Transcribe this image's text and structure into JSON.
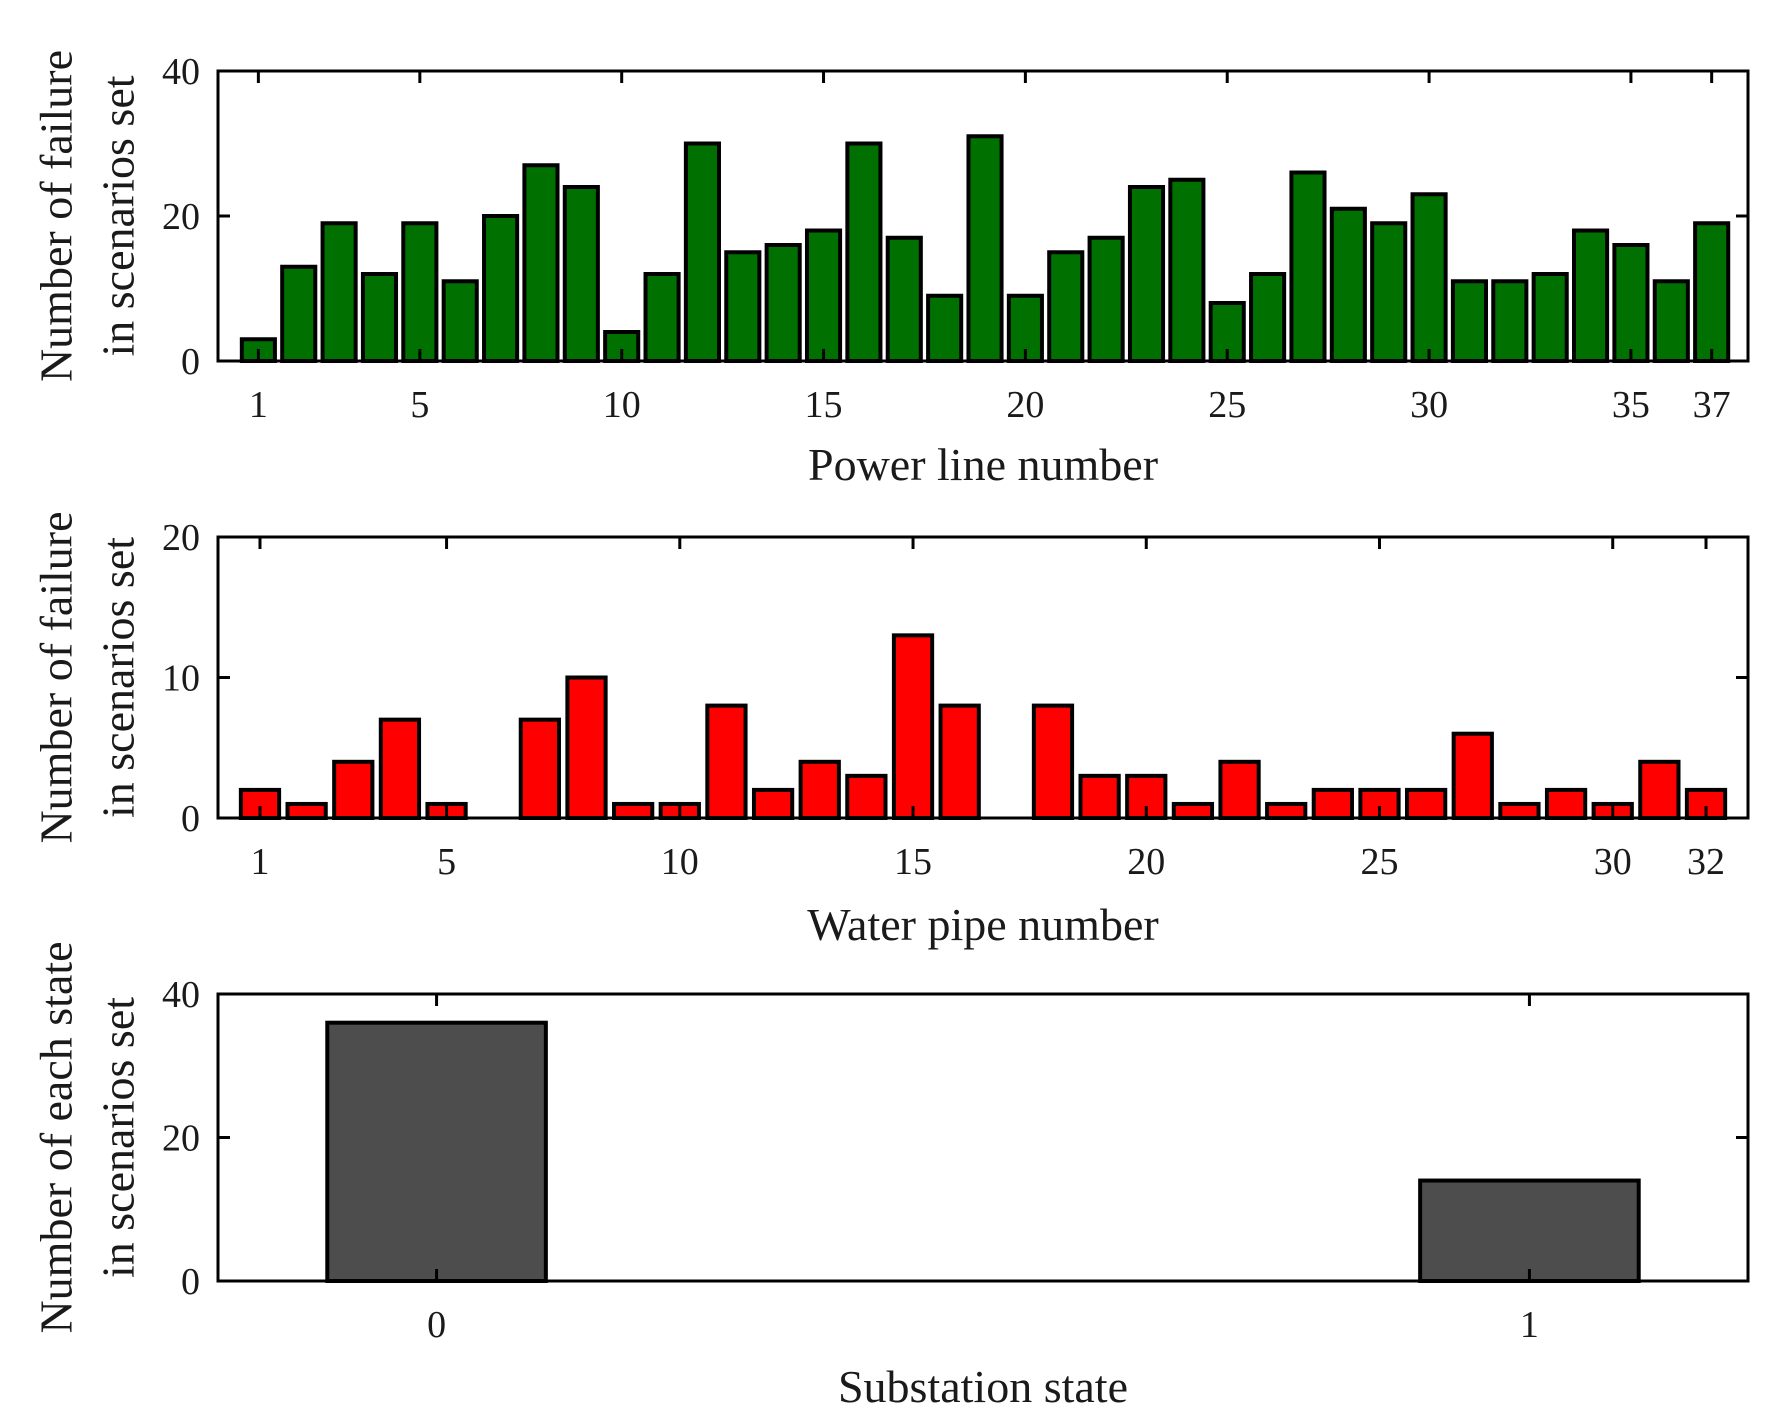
{
  "chart_data": [
    {
      "type": "bar",
      "title": "",
      "xlabel": "Power line number",
      "ylabel": [
        "Number of failure",
        "in scenarios set"
      ],
      "x": [
        1,
        2,
        3,
        4,
        5,
        6,
        7,
        8,
        9,
        10,
        11,
        12,
        13,
        14,
        15,
        16,
        17,
        18,
        19,
        20,
        21,
        22,
        23,
        24,
        25,
        26,
        27,
        28,
        29,
        30,
        31,
        32,
        33,
        34,
        35,
        36,
        37
      ],
      "values": [
        3,
        13,
        19,
        12,
        19,
        11,
        20,
        27,
        24,
        4,
        12,
        30,
        15,
        16,
        18,
        30,
        17,
        9,
        31,
        9,
        15,
        17,
        24,
        25,
        8,
        12,
        26,
        21,
        19,
        23,
        11,
        11,
        12,
        18,
        16,
        11,
        19
      ],
      "xticks": [
        1,
        5,
        10,
        15,
        20,
        25,
        30,
        35,
        37
      ],
      "xlim": [
        0,
        37.9
      ],
      "ylim": [
        0,
        40
      ],
      "yticks": [
        0,
        20,
        40
      ],
      "color": "#007100"
    },
    {
      "type": "bar",
      "title": "",
      "xlabel": "Water pipe number",
      "ylabel": [
        "Number of failure",
        "in scenarios set"
      ],
      "x": [
        1,
        2,
        3,
        4,
        5,
        6,
        7,
        8,
        9,
        10,
        11,
        12,
        13,
        14,
        15,
        16,
        17,
        18,
        19,
        20,
        21,
        22,
        23,
        24,
        25,
        26,
        27,
        28,
        29,
        30,
        31,
        32
      ],
      "values": [
        2,
        1,
        4,
        7,
        1,
        0,
        7,
        10,
        1,
        1,
        8,
        2,
        4,
        3,
        13,
        8,
        0,
        8,
        3,
        3,
        1,
        4,
        1,
        2,
        2,
        2,
        6,
        1,
        2,
        1,
        4,
        2
      ],
      "xticks": [
        1,
        5,
        10,
        15,
        20,
        25,
        30,
        32
      ],
      "xlim": [
        0.1,
        32.9
      ],
      "ylim": [
        0,
        20
      ],
      "yticks": [
        0,
        10,
        20
      ],
      "color": "#ff0000"
    },
    {
      "type": "bar",
      "title": "",
      "xlabel": "Substation state",
      "ylabel": [
        "Number of each state",
        "in scenarios set"
      ],
      "x": [
        0,
        1
      ],
      "values": [
        36,
        14
      ],
      "xticks": [
        0,
        1
      ],
      "xlim": [
        -0.2,
        1.2
      ],
      "ylim": [
        0,
        40
      ],
      "yticks": [
        0,
        20,
        40
      ],
      "color": "#4d4d4d"
    }
  ]
}
